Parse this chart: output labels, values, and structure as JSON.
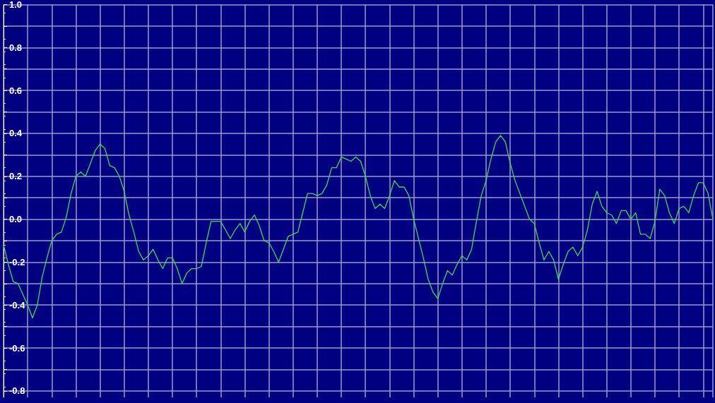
{
  "chart_data": {
    "type": "line",
    "categories": [
      null,
      null,
      null,
      null,
      null,
      null,
      null,
      null,
      null,
      null,
      null,
      null,
      null,
      null,
      null,
      null,
      null,
      null,
      null,
      null,
      null,
      null,
      null,
      null,
      null,
      null,
      null,
      null,
      null,
      null,
      null,
      null,
      null,
      null,
      null,
      null,
      null,
      null,
      null,
      null,
      null,
      null,
      null,
      null,
      null,
      null,
      null,
      null,
      null,
      null,
      null,
      null,
      null,
      null,
      null,
      null,
      null,
      null,
      null,
      null,
      null,
      null,
      null,
      null,
      null,
      null,
      null,
      null,
      null,
      null,
      null,
      null,
      null,
      null,
      null,
      null,
      null,
      null,
      null,
      null,
      null,
      null,
      null,
      null,
      null,
      null,
      null,
      null,
      null,
      null,
      null,
      null,
      null,
      null,
      null,
      null,
      null,
      null,
      null,
      null,
      null,
      null,
      null,
      null,
      null,
      null,
      null,
      null,
      null,
      null,
      null,
      null,
      null,
      null,
      null,
      null,
      null,
      null,
      null,
      null,
      null,
      null,
      null,
      null,
      null,
      null,
      null,
      null,
      null,
      null,
      null,
      null,
      null,
      null,
      null,
      null,
      null,
      null,
      null,
      null,
      null,
      null,
      null,
      null,
      null,
      null,
      null,
      null
    ],
    "series": [
      {
        "color": "#33dd55",
        "values": [
          -0.12,
          -0.21,
          -0.29,
          -0.3,
          -0.35,
          -0.4,
          -0.46,
          -0.4,
          -0.27,
          -0.18,
          -0.1,
          -0.07,
          -0.06,
          0.01,
          0.12,
          0.2,
          0.22,
          0.2,
          0.26,
          0.32,
          0.35,
          0.33,
          0.25,
          0.24,
          0.2,
          0.13,
          0.02,
          -0.06,
          -0.15,
          -0.19,
          -0.17,
          -0.14,
          -0.19,
          -0.23,
          -0.18,
          -0.18,
          -0.23,
          -0.3,
          -0.25,
          -0.23,
          -0.23,
          -0.22,
          -0.11,
          -0.01,
          -0.01,
          -0.01,
          -0.05,
          -0.09,
          -0.05,
          -0.02,
          -0.06,
          -0.01,
          0.02,
          -0.03,
          -0.1,
          -0.11,
          -0.15,
          -0.2,
          -0.14,
          -0.08,
          -0.07,
          -0.06,
          0.03,
          0.12,
          0.12,
          0.11,
          0.12,
          0.16,
          0.24,
          0.24,
          0.29,
          0.28,
          0.27,
          0.29,
          0.27,
          0.2,
          0.11,
          0.05,
          0.07,
          0.05,
          0.11,
          0.18,
          0.15,
          0.15,
          0.11,
          0.0,
          -0.09,
          -0.18,
          -0.28,
          -0.34,
          -0.37,
          -0.3,
          -0.24,
          -0.26,
          -0.21,
          -0.17,
          -0.19,
          -0.14,
          -0.01,
          0.11,
          0.18,
          0.28,
          0.36,
          0.39,
          0.36,
          0.26,
          0.18,
          0.12,
          0.06,
          0.0,
          -0.02,
          -0.11,
          -0.19,
          -0.15,
          -0.19,
          -0.28,
          -0.21,
          -0.15,
          -0.13,
          -0.17,
          -0.13,
          -0.05,
          0.07,
          0.13,
          0.06,
          0.03,
          0.02,
          -0.02,
          0.04,
          0.04,
          0.0,
          0.03,
          -0.07,
          -0.07,
          -0.09,
          -0.01,
          0.14,
          0.11,
          0.03,
          -0.02,
          0.05,
          0.06,
          0.03,
          0.11,
          0.17,
          0.17,
          0.12,
          0.0
        ]
      }
    ],
    "ylim": [
      -0.83,
      1.0
    ],
    "yticks": [
      {
        "value": -0.8,
        "label": "-0.8"
      },
      {
        "value": -0.7,
        "label": null
      },
      {
        "value": -0.6,
        "label": "-0.6"
      },
      {
        "value": -0.5,
        "label": null
      },
      {
        "value": -0.4,
        "label": "-0.4"
      },
      {
        "value": -0.3,
        "label": null
      },
      {
        "value": -0.2,
        "label": "-0.2"
      },
      {
        "value": -0.1,
        "label": null
      },
      {
        "value": 0,
        "label": "0.0"
      },
      {
        "value": 0.1,
        "label": null
      },
      {
        "value": 0.2,
        "label": "0.2"
      },
      {
        "value": 0.3,
        "label": null
      },
      {
        "value": 0.4,
        "label": "0.4"
      },
      {
        "value": 0.5,
        "label": null
      },
      {
        "value": 0.6,
        "label": "0.6"
      },
      {
        "value": 0.7,
        "label": null
      },
      {
        "value": 0.8,
        "label": "0.8"
      },
      {
        "value": 0.9,
        "label": null
      },
      {
        "value": 1.0,
        "label": "1.0"
      }
    ],
    "grid": true,
    "marker": "none",
    "line_style": "solid"
  }
}
